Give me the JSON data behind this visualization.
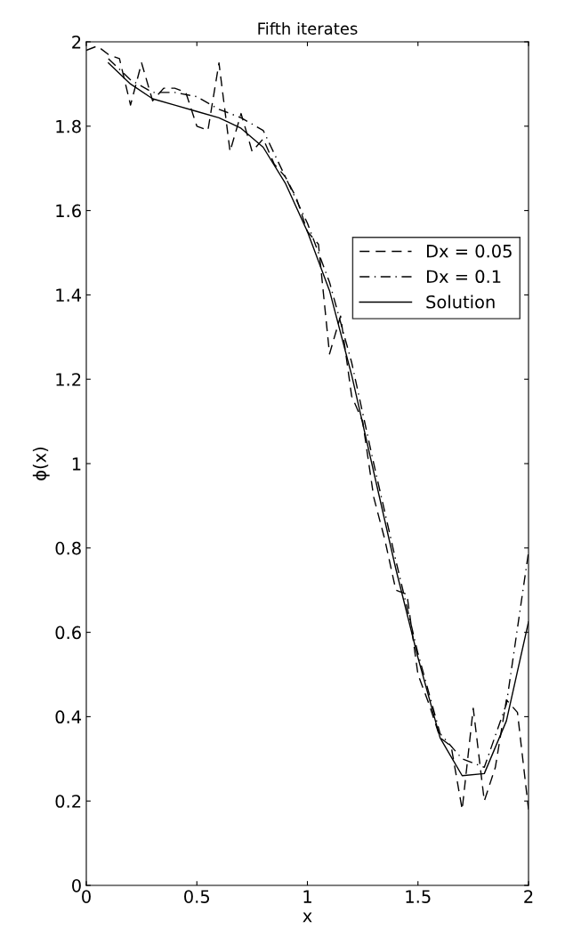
{
  "chart_data": {
    "type": "line",
    "title": "Fifth iterates",
    "xlabel": "x",
    "ylabel": "ϕ(x)",
    "xlim": [
      0,
      2
    ],
    "ylim": [
      0,
      2
    ],
    "xticks": [
      0,
      0.5,
      1,
      1.5,
      2
    ],
    "yticks": [
      0,
      0.2,
      0.4,
      0.6,
      0.8,
      1,
      1.2,
      1.4,
      1.6,
      1.8,
      2
    ],
    "grid": false,
    "legend": "right",
    "marker": "none",
    "series": [
      {
        "name": "Dx = 0.05",
        "color": "#000000",
        "line_style": "dashed",
        "x": [
          0,
          0.05,
          0.1,
          0.15,
          0.2,
          0.25,
          0.3,
          0.35,
          0.4,
          0.45,
          0.5,
          0.55,
          0.6,
          0.65,
          0.7,
          0.75,
          0.8,
          0.85,
          0.9,
          0.95,
          1.0,
          1.05,
          1.1,
          1.15,
          1.2,
          1.25,
          1.3,
          1.35,
          1.4,
          1.45,
          1.5,
          1.55,
          1.6,
          1.65,
          1.7,
          1.75,
          1.8,
          1.85,
          1.9,
          1.95,
          2.0
        ],
        "values": [
          1.98,
          1.99,
          1.97,
          1.96,
          1.85,
          1.95,
          1.86,
          1.89,
          1.89,
          1.88,
          1.8,
          1.79,
          1.95,
          1.74,
          1.83,
          1.74,
          1.77,
          1.71,
          1.68,
          1.63,
          1.55,
          1.52,
          1.26,
          1.35,
          1.16,
          1.1,
          0.92,
          0.82,
          0.7,
          0.69,
          0.5,
          0.43,
          0.35,
          0.33,
          0.18,
          0.42,
          0.2,
          0.28,
          0.44,
          0.41,
          0.18
        ]
      },
      {
        "name": "Dx = 0.1",
        "color": "#000000",
        "line_style": "dashdot",
        "x": [
          0.1,
          0.2,
          0.3,
          0.4,
          0.5,
          0.6,
          0.7,
          0.8,
          0.9,
          1.0,
          1.1,
          1.2,
          1.3,
          1.4,
          1.5,
          1.6,
          1.7,
          1.8,
          1.9,
          2.0
        ],
        "values": [
          1.96,
          1.91,
          1.88,
          1.88,
          1.87,
          1.84,
          1.82,
          1.79,
          1.68,
          1.57,
          1.43,
          1.24,
          1.0,
          0.77,
          0.55,
          0.36,
          0.3,
          0.28,
          0.43,
          0.79
        ]
      },
      {
        "name": "Solution",
        "color": "#000000",
        "line_style": "solid",
        "x": [
          0.1,
          0.2,
          0.3,
          0.4,
          0.5,
          0.6,
          0.7,
          0.8,
          0.9,
          1.0,
          1.1,
          1.2,
          1.3,
          1.4,
          1.5,
          1.6,
          1.7,
          1.8,
          1.9,
          2.0
        ],
        "values": [
          1.95,
          1.9,
          1.865,
          1.85,
          1.835,
          1.82,
          1.795,
          1.75,
          1.665,
          1.55,
          1.41,
          1.21,
          0.98,
          0.75,
          0.54,
          0.35,
          0.26,
          0.265,
          0.39,
          0.625
        ]
      }
    ]
  }
}
